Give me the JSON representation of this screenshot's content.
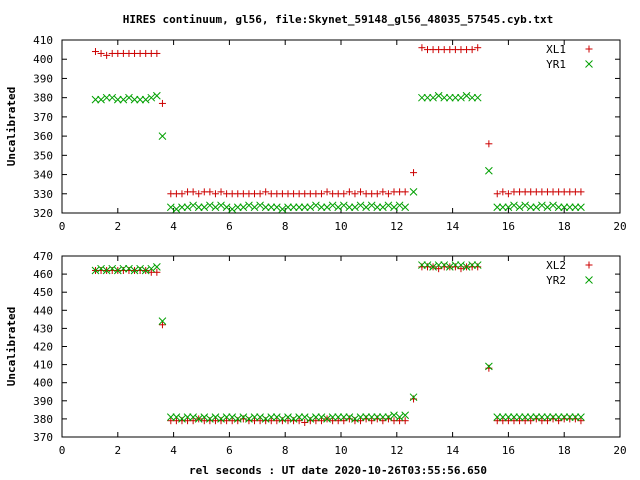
{
  "title": "HIRES continuum, gl56, file:Skynet_59148_gl56_48035_57545.cyb.txt",
  "xlabel": "rel seconds : UT date 2020-10-26T03:55:56.650",
  "colors": {
    "red": "#cc0000",
    "green": "#00a000"
  },
  "chart_data": [
    {
      "type": "scatter",
      "ylabel": "Uncalibrated",
      "xlim": [
        0,
        20
      ],
      "ylim": [
        320,
        410
      ],
      "xticks": [
        0,
        2,
        4,
        6,
        8,
        10,
        12,
        14,
        16,
        18,
        20
      ],
      "yticks": [
        320,
        330,
        340,
        350,
        360,
        370,
        380,
        390,
        400,
        410
      ],
      "legend_position": "top-right",
      "series": [
        {
          "name": "XL1",
          "marker": "plus",
          "color": "#cc0000",
          "x": [
            1.2,
            1.4,
            1.6,
            1.8,
            2.0,
            2.2,
            2.4,
            2.6,
            2.8,
            3.0,
            3.2,
            3.4,
            3.6,
            3.9,
            4.1,
            4.3,
            4.5,
            4.7,
            4.9,
            5.1,
            5.3,
            5.5,
            5.7,
            5.9,
            6.1,
            6.3,
            6.5,
            6.7,
            6.9,
            7.1,
            7.3,
            7.5,
            7.7,
            7.9,
            8.1,
            8.3,
            8.5,
            8.7,
            8.9,
            9.1,
            9.3,
            9.5,
            9.7,
            9.9,
            10.1,
            10.3,
            10.5,
            10.7,
            10.9,
            11.1,
            11.3,
            11.5,
            11.7,
            11.9,
            12.1,
            12.3,
            12.6,
            12.9,
            13.1,
            13.3,
            13.5,
            13.7,
            13.9,
            14.1,
            14.3,
            14.5,
            14.7,
            14.9,
            15.3,
            15.6,
            15.8,
            16.0,
            16.2,
            16.4,
            16.6,
            16.8,
            17.0,
            17.2,
            17.4,
            17.6,
            17.8,
            18.0,
            18.2,
            18.4,
            18.6
          ],
          "y": [
            404,
            403,
            402,
            403,
            403,
            403,
            403,
            403,
            403,
            403,
            403,
            403,
            377,
            330,
            330,
            330,
            331,
            331,
            330,
            331,
            331,
            330,
            331,
            330,
            330,
            330,
            330,
            330,
            330,
            330,
            331,
            330,
            330,
            330,
            330,
            330,
            330,
            330,
            330,
            330,
            330,
            331,
            330,
            330,
            330,
            331,
            330,
            331,
            330,
            330,
            330,
            331,
            330,
            331,
            331,
            331,
            341,
            406,
            405,
            405,
            405,
            405,
            405,
            405,
            405,
            405,
            405,
            406,
            356,
            330,
            331,
            330,
            331,
            331,
            331,
            331,
            331,
            331,
            331,
            331,
            331,
            331,
            331,
            331,
            331
          ]
        },
        {
          "name": "YR1",
          "marker": "cross",
          "color": "#00a000",
          "x": [
            1.2,
            1.4,
            1.6,
            1.8,
            2.0,
            2.2,
            2.4,
            2.6,
            2.8,
            3.0,
            3.2,
            3.4,
            3.6,
            3.9,
            4.1,
            4.3,
            4.5,
            4.7,
            4.9,
            5.1,
            5.3,
            5.5,
            5.7,
            5.9,
            6.1,
            6.3,
            6.5,
            6.7,
            6.9,
            7.1,
            7.3,
            7.5,
            7.7,
            7.9,
            8.1,
            8.3,
            8.5,
            8.7,
            8.9,
            9.1,
            9.3,
            9.5,
            9.7,
            9.9,
            10.1,
            10.3,
            10.5,
            10.7,
            10.9,
            11.1,
            11.3,
            11.5,
            11.7,
            11.9,
            12.1,
            12.3,
            12.6,
            12.9,
            13.1,
            13.3,
            13.5,
            13.7,
            13.9,
            14.1,
            14.3,
            14.5,
            14.7,
            14.9,
            15.3,
            15.6,
            15.8,
            16.0,
            16.2,
            16.4,
            16.6,
            16.8,
            17.0,
            17.2,
            17.4,
            17.6,
            17.8,
            18.0,
            18.2,
            18.4,
            18.6
          ],
          "y": [
            379,
            379,
            380,
            380,
            379,
            379,
            380,
            379,
            379,
            379,
            380,
            381,
            360,
            323,
            322,
            323,
            323,
            324,
            323,
            323,
            324,
            323,
            324,
            323,
            322,
            323,
            323,
            324,
            323,
            324,
            323,
            323,
            323,
            322,
            323,
            323,
            323,
            323,
            323,
            324,
            323,
            323,
            324,
            323,
            324,
            323,
            323,
            324,
            323,
            324,
            323,
            323,
            324,
            323,
            324,
            323,
            331,
            380,
            380,
            380,
            381,
            380,
            380,
            380,
            380,
            381,
            380,
            380,
            342,
            323,
            323,
            323,
            324,
            323,
            324,
            323,
            323,
            324,
            323,
            324,
            323,
            323,
            323,
            323,
            323
          ]
        }
      ]
    },
    {
      "type": "scatter",
      "ylabel": "Uncalibrated",
      "xlim": [
        0,
        20
      ],
      "ylim": [
        370,
        470
      ],
      "xticks": [
        0,
        2,
        4,
        6,
        8,
        10,
        12,
        14,
        16,
        18,
        20
      ],
      "yticks": [
        370,
        380,
        390,
        400,
        410,
        420,
        430,
        440,
        450,
        460,
        470
      ],
      "legend_position": "top-right",
      "series": [
        {
          "name": "XL2",
          "marker": "plus",
          "color": "#cc0000",
          "x": [
            1.2,
            1.4,
            1.6,
            1.8,
            2.0,
            2.2,
            2.4,
            2.6,
            2.8,
            3.0,
            3.2,
            3.4,
            3.6,
            3.9,
            4.1,
            4.3,
            4.5,
            4.7,
            4.9,
            5.1,
            5.3,
            5.5,
            5.7,
            5.9,
            6.1,
            6.3,
            6.5,
            6.7,
            6.9,
            7.1,
            7.3,
            7.5,
            7.7,
            7.9,
            8.1,
            8.3,
            8.5,
            8.7,
            8.9,
            9.1,
            9.3,
            9.5,
            9.7,
            9.9,
            10.1,
            10.3,
            10.5,
            10.7,
            10.9,
            11.1,
            11.3,
            11.5,
            11.7,
            11.9,
            12.1,
            12.3,
            12.6,
            12.9,
            13.1,
            13.3,
            13.5,
            13.7,
            13.9,
            14.1,
            14.3,
            14.5,
            14.7,
            14.9,
            15.3,
            15.6,
            15.8,
            16.0,
            16.2,
            16.4,
            16.6,
            16.8,
            17.0,
            17.2,
            17.4,
            17.6,
            17.8,
            18.0,
            18.2,
            18.4,
            18.6
          ],
          "y": [
            462,
            462,
            462,
            462,
            462,
            462,
            462,
            462,
            462,
            462,
            461,
            461,
            432,
            379,
            379,
            379,
            379,
            379,
            380,
            379,
            379,
            379,
            379,
            379,
            379,
            379,
            380,
            379,
            379,
            379,
            379,
            379,
            379,
            379,
            379,
            379,
            379,
            378,
            379,
            379,
            379,
            380,
            379,
            379,
            379,
            380,
            379,
            379,
            380,
            379,
            380,
            379,
            380,
            379,
            379,
            379,
            391,
            464,
            464,
            464,
            463,
            464,
            464,
            464,
            463,
            464,
            464,
            464,
            408,
            379,
            379,
            379,
            379,
            379,
            379,
            379,
            380,
            379,
            379,
            380,
            379,
            380,
            380,
            380,
            379
          ]
        },
        {
          "name": "YR2",
          "marker": "cross",
          "color": "#00a000",
          "x": [
            1.2,
            1.4,
            1.6,
            1.8,
            2.0,
            2.2,
            2.4,
            2.6,
            2.8,
            3.0,
            3.2,
            3.4,
            3.6,
            3.9,
            4.1,
            4.3,
            4.5,
            4.7,
            4.9,
            5.1,
            5.3,
            5.5,
            5.7,
            5.9,
            6.1,
            6.3,
            6.5,
            6.7,
            6.9,
            7.1,
            7.3,
            7.5,
            7.7,
            7.9,
            8.1,
            8.3,
            8.5,
            8.7,
            8.9,
            9.1,
            9.3,
            9.5,
            9.7,
            9.9,
            10.1,
            10.3,
            10.5,
            10.7,
            10.9,
            11.1,
            11.3,
            11.5,
            11.7,
            11.9,
            12.1,
            12.3,
            12.6,
            12.9,
            13.1,
            13.3,
            13.5,
            13.7,
            13.9,
            14.1,
            14.3,
            14.5,
            14.7,
            14.9,
            15.3,
            15.6,
            15.8,
            16.0,
            16.2,
            16.4,
            16.6,
            16.8,
            17.0,
            17.2,
            17.4,
            17.6,
            17.8,
            18.0,
            18.2,
            18.4,
            18.6
          ],
          "y": [
            462,
            463,
            462,
            463,
            462,
            463,
            463,
            462,
            463,
            462,
            463,
            464,
            434,
            381,
            381,
            380,
            381,
            381,
            380,
            381,
            380,
            381,
            380,
            381,
            381,
            380,
            381,
            380,
            381,
            381,
            380,
            381,
            381,
            380,
            381,
            380,
            381,
            381,
            380,
            381,
            381,
            380,
            381,
            381,
            381,
            381,
            380,
            381,
            381,
            381,
            381,
            381,
            381,
            382,
            381,
            382,
            392,
            465,
            465,
            464,
            465,
            465,
            464,
            465,
            465,
            464,
            465,
            465,
            409,
            381,
            381,
            381,
            381,
            381,
            381,
            381,
            381,
            381,
            381,
            381,
            381,
            381,
            381,
            381,
            381
          ]
        }
      ]
    }
  ]
}
